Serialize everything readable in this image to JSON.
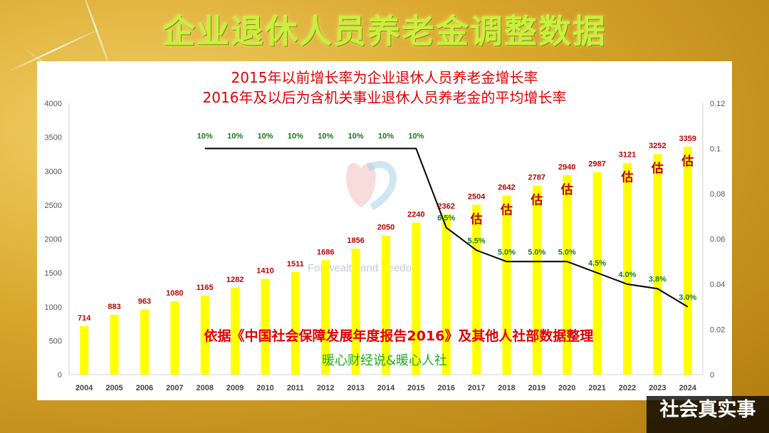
{
  "main_title": "企业退休人员养老金调整数据",
  "chart_data": {
    "type": "bar",
    "title": "2015年以前增长率为企业退休人员养老金增长率",
    "subtitle": "2016年及以后为含机关事业退休人员养老金的平均增长率",
    "categories": [
      "2004",
      "2005",
      "2006",
      "2007",
      "2008",
      "2009",
      "2010",
      "2011",
      "2012",
      "2013",
      "2014",
      "2015",
      "2016",
      "2017",
      "2018",
      "2019",
      "2020",
      "2021",
      "2022",
      "2023",
      "2024"
    ],
    "series": [
      {
        "type": "bar",
        "axis": "left",
        "color": "#ffff00",
        "values": [
          714,
          883,
          963,
          1080,
          1165,
          1282,
          1410,
          1511,
          1686,
          1856,
          2050,
          2240,
          2362,
          2504,
          2642,
          2787,
          2940,
          2987,
          3121,
          3252,
          3359
        ]
      },
      {
        "type": "line",
        "axis": "right",
        "color": "#000000",
        "x": [
          "2008",
          "2009",
          "2010",
          "2011",
          "2012",
          "2013",
          "2014",
          "2015",
          "2016",
          "2017",
          "2018",
          "2019",
          "2020",
          "2021",
          "2022",
          "2023",
          "2024"
        ],
        "values": [
          0.1,
          0.1,
          0.1,
          0.1,
          0.1,
          0.1,
          0.1,
          0.1,
          0.065,
          0.055,
          0.05,
          0.05,
          0.05,
          0.045,
          0.04,
          0.038,
          0.03
        ],
        "labels": [
          "10%",
          "10%",
          "10%",
          "10%",
          "10%",
          "10%",
          "10%",
          "10%",
          "6.5%",
          "5.5%",
          "5.0%",
          "5.0%",
          "5.0%",
          "4.5%",
          "4.0%",
          "3.8%",
          "3.0%"
        ]
      }
    ],
    "estimate_mark": "估",
    "estimate_years": [
      "2017",
      "2018",
      "2019",
      "2020",
      "2022",
      "2023",
      "2024"
    ],
    "y_left": {
      "min": 0,
      "max": 4000,
      "ticks": [
        0,
        500,
        1000,
        1500,
        2000,
        2500,
        3000,
        3500,
        4000
      ]
    },
    "y_right": {
      "min": 0,
      "max": 0.12,
      "ticks": [
        "0",
        "0.02",
        "0.04",
        "0.06",
        "0.08",
        "0.1",
        "0.12"
      ]
    },
    "grid": false,
    "source_note": "依据《中国社会保障发展年度报告2016》及其他人社部数据整理",
    "credit": "暖心财经说&暖心人社",
    "logo_text": "For wealth and freedom",
    "colors": {
      "bar": "#ffff00",
      "value_label": "#c00000",
      "rate_label": "#1a7a1a",
      "line": "#000000",
      "note": "#e00000",
      "credit": "#22aa22",
      "title": "#e00000"
    }
  },
  "corner_watermark": "社会真实事"
}
